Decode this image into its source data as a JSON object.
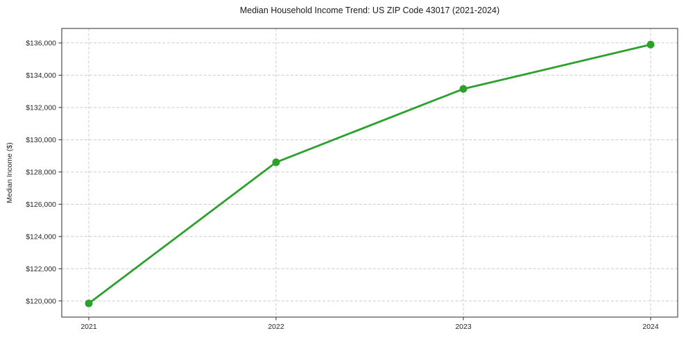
{
  "page": {
    "title": "Median Household Income Trend: US ZIP Code 43017 (2021-2024)"
  },
  "chart_data": {
    "type": "line",
    "title": "Median Household Income Trend: US ZIP Code 43017 (2021-2024)",
    "x": [
      2021,
      2022,
      2023,
      2024
    ],
    "xtick_labels": [
      "2021",
      "2022",
      "2023",
      "2024"
    ],
    "series": [
      {
        "name": "Median Household Income",
        "values": [
          119850,
          128600,
          133150,
          135900
        ]
      }
    ],
    "xlabel": "",
    "ylabel": "Median Income ($)",
    "ylim": [
      119000,
      136900
    ],
    "yticks": [
      120000,
      122000,
      124000,
      126000,
      128000,
      130000,
      132000,
      134000,
      136000
    ],
    "ytick_labels": [
      "$120,000",
      "$122,000",
      "$124,000",
      "$126,000",
      "$128,000",
      "$130,000",
      "$132,000",
      "$134,000",
      "$136,000"
    ],
    "grid": true,
    "grid_style": "dashed",
    "legend": "none",
    "line_color": "#2ca02c",
    "marker_color": "#2ca02c",
    "grid_color": "#cccccc",
    "axis_color": "#2a2a2a",
    "text_color": "#262626",
    "background": "#ffffff"
  }
}
